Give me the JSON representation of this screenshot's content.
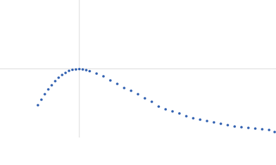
{
  "chart_data": {
    "type": "scatter",
    "color": "#2f5fb0",
    "grid": true,
    "xlim": [
      0,
      3.478
    ],
    "ylim": [
      0,
      2
    ],
    "xticks": [
      1
    ],
    "yticks": [
      1
    ],
    "x": [
      0.478,
      0.522,
      0.565,
      0.609,
      0.652,
      0.696,
      0.739,
      0.783,
      0.826,
      0.87,
      0.913,
      0.957,
      1.0,
      1.043,
      1.087,
      1.13,
      1.217,
      1.304,
      1.391,
      1.478,
      1.565,
      1.652,
      1.739,
      1.826,
      1.913,
      2.0,
      2.087,
      2.174,
      2.261,
      2.348,
      2.435,
      2.522,
      2.609,
      2.696,
      2.783,
      2.87,
      2.957,
      3.043,
      3.13,
      3.217,
      3.304,
      3.391,
      3.461
    ],
    "values": [
      0.47,
      0.55,
      0.63,
      0.7,
      0.76,
      0.82,
      0.87,
      0.91,
      0.94,
      0.97,
      0.985,
      0.99,
      0.995,
      0.99,
      0.98,
      0.965,
      0.93,
      0.89,
      0.83,
      0.78,
      0.72,
      0.68,
      0.63,
      0.57,
      0.52,
      0.45,
      0.41,
      0.38,
      0.35,
      0.31,
      0.28,
      0.26,
      0.24,
      0.22,
      0.2,
      0.18,
      0.16,
      0.15,
      0.14,
      0.13,
      0.12,
      0.11,
      0.08
    ]
  }
}
